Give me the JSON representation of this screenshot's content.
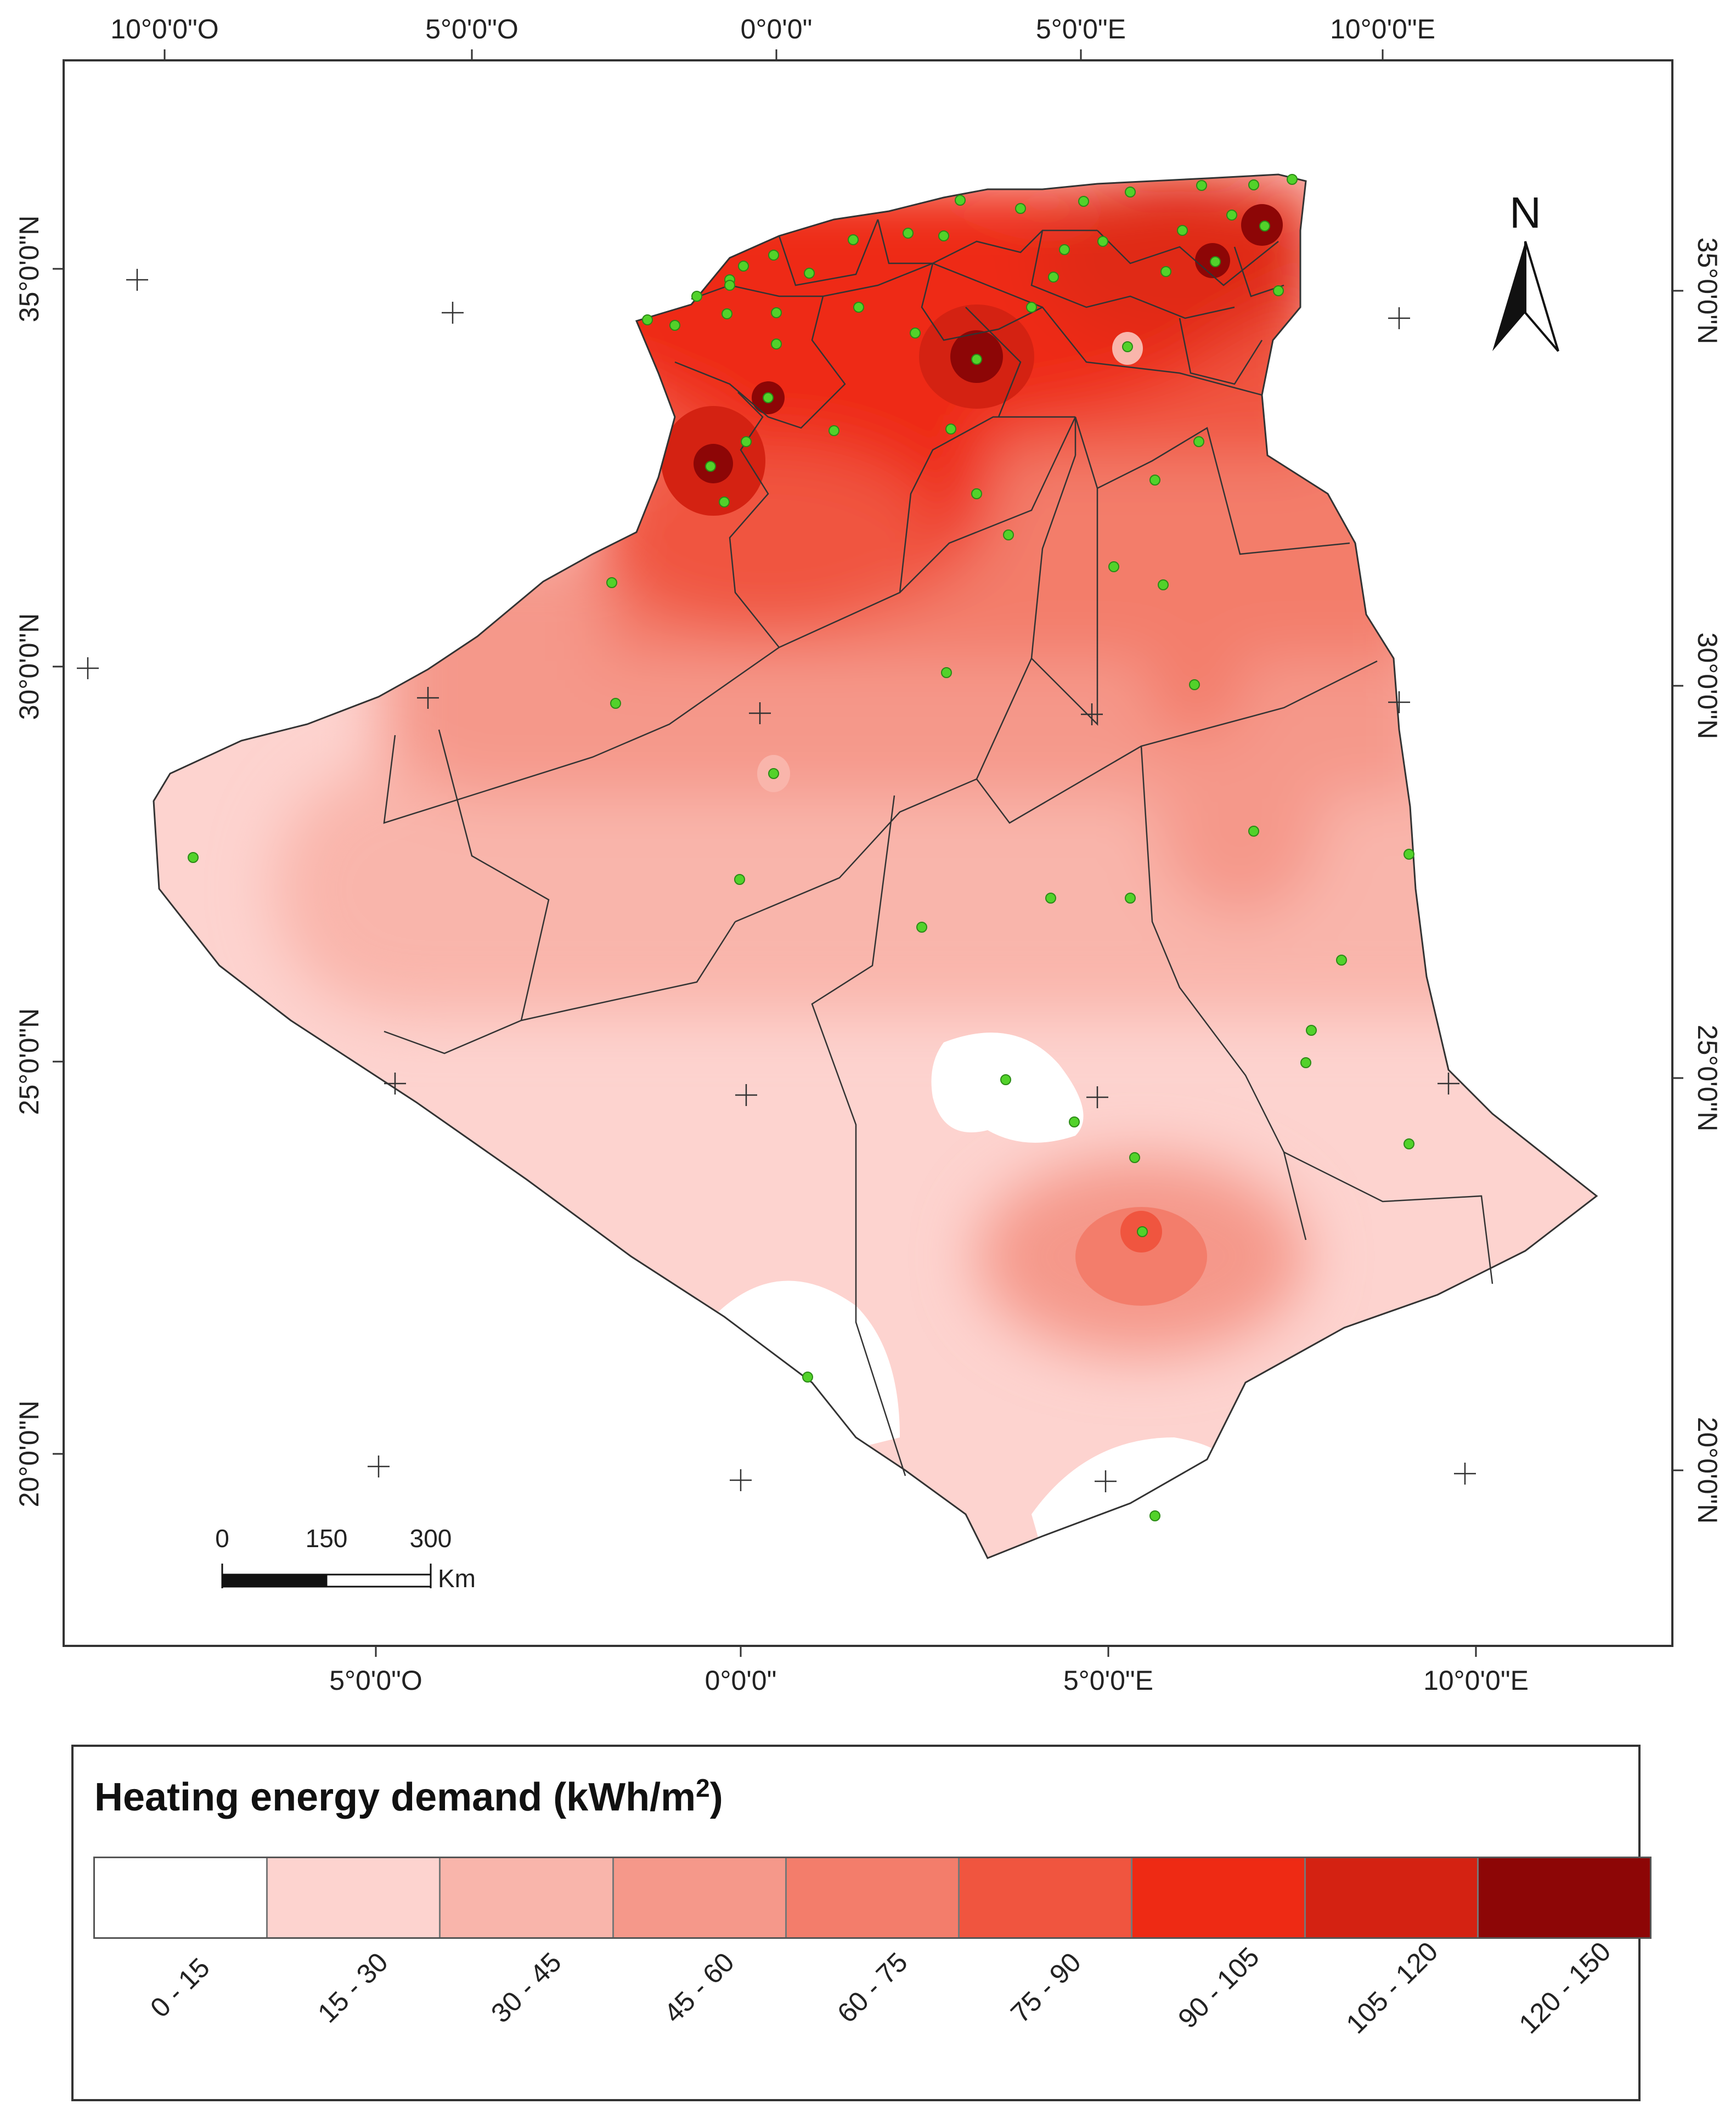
{
  "map": {
    "top_axis_labels": [
      "10°0'0\"O",
      "5°0'0\"O",
      "0°0'0\"",
      "5°0'0\"E",
      "10°0'0\"E"
    ],
    "bottom_axis_labels": [
      "5°0'0\"O",
      "0°0'0\"",
      "5°0'0\"E",
      "10°0'0\"E"
    ],
    "left_axis_labels": [
      "35°0'0\"N",
      "30°0'0\"N",
      "25°0'0\"N",
      "20°0'0\"N"
    ],
    "right_axis_labels": [
      "35°0'0\"N",
      "30°0'0\"N",
      "25°0'0\"N",
      "20°0'0\"N"
    ],
    "north_arrow_label": "N",
    "scale_bar": {
      "labels": [
        "0",
        "150",
        "300"
      ],
      "unit": "Km"
    }
  },
  "legend": {
    "title": "Heating energy demand (kWh/m",
    "title_sup": "2",
    "title_close": ")",
    "classes": [
      {
        "label": "0 - 15",
        "color": "#ffffff"
      },
      {
        "label": "15 - 30",
        "color": "#fdd3cf"
      },
      {
        "label": "30 - 45",
        "color": "#f9b5ab"
      },
      {
        "label": "45 - 60",
        "color": "#f5988a"
      },
      {
        "label": "60 - 75",
        "color": "#f37d6b"
      },
      {
        "label": "75 - 90",
        "color": "#f0553f"
      },
      {
        "label": "90 - 105",
        "color": "#ee2a14"
      },
      {
        "label": "105 - 120",
        "color": "#d42212"
      },
      {
        "label": "120 - 150",
        "color": "#8d0606"
      }
    ]
  },
  "colors": {
    "station_dot": "#52d22a",
    "boundary": "#333333",
    "frame": "#333333"
  }
}
